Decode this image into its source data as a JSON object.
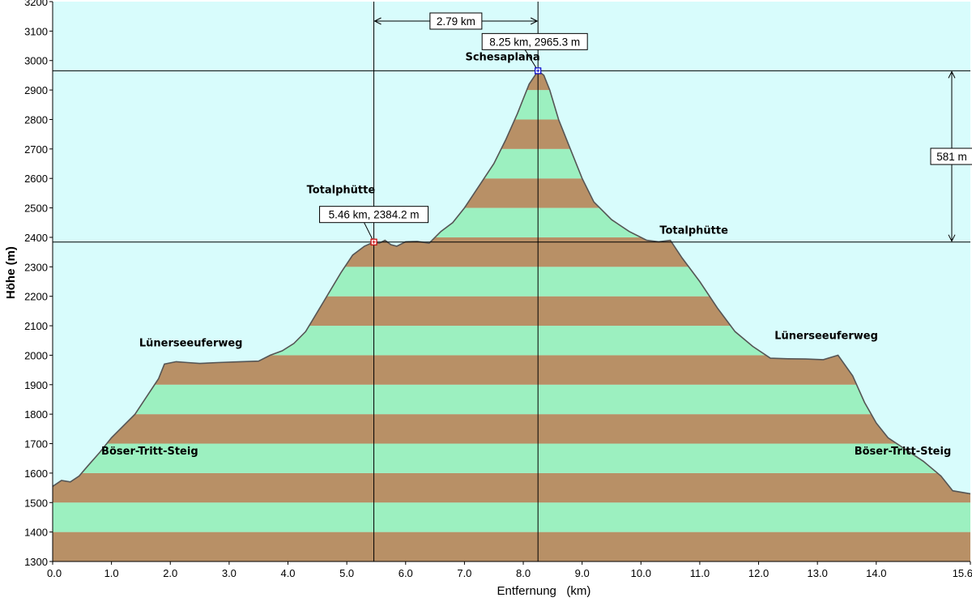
{
  "chart_data": {
    "type": "area",
    "title": "",
    "xlabel": "Entfernung   (km)",
    "ylabel": "Höhe (m)",
    "xlim": [
      0,
      15.6
    ],
    "ylim": [
      1300,
      3200
    ],
    "x_ticks": [
      "0.0",
      "1.0",
      "2.0",
      "3.0",
      "4.0",
      "5.0",
      "6.0",
      "7.0",
      "8.0",
      "9.0",
      "10.0",
      "11.0",
      "12.0",
      "13.0",
      "14.0",
      "15.6"
    ],
    "x_tick_values": [
      0,
      1,
      2,
      3,
      4,
      5,
      6,
      7,
      8,
      9,
      10,
      11,
      12,
      13,
      14,
      15.6
    ],
    "y_ticks": [
      "1300",
      "1400",
      "1500",
      "1600",
      "1700",
      "1800",
      "1900",
      "2000",
      "2100",
      "2200",
      "2300",
      "2400",
      "2500",
      "2600",
      "2700",
      "2800",
      "2900",
      "3000",
      "3100",
      "3200"
    ],
    "y_tick_values": [
      1300,
      1400,
      1500,
      1600,
      1700,
      1800,
      1900,
      2000,
      2100,
      2200,
      2300,
      2400,
      2500,
      2600,
      2700,
      2800,
      2900,
      3000,
      3100,
      3200
    ],
    "colors": {
      "sky": "#d8fcfc",
      "band_green": "#9cf0c0",
      "band_brown": "#b89066",
      "outline": "#555555"
    },
    "series": [
      {
        "x": [
          0,
          0.15,
          0.3,
          0.45,
          0.6,
          0.8,
          1.0,
          1.2,
          1.4,
          1.6,
          1.8,
          1.9,
          2.1,
          2.3,
          2.5,
          2.8,
          3.2,
          3.5,
          3.7,
          3.9,
          4.1,
          4.3,
          4.6,
          4.9,
          5.1,
          5.3,
          5.46,
          5.55,
          5.65,
          5.75,
          5.85,
          6.0,
          6.2,
          6.4,
          6.6,
          6.8,
          7.0,
          7.2,
          7.5,
          7.7,
          7.9,
          8.0,
          8.1,
          8.2,
          8.25,
          8.35,
          8.45,
          8.6,
          8.8,
          9.0,
          9.2,
          9.5,
          9.8,
          10.1,
          10.3,
          10.5,
          10.7,
          11.0,
          11.3,
          11.6,
          11.9,
          12.2,
          12.5,
          12.8,
          13.1,
          13.35,
          13.6,
          13.8,
          14.0,
          14.2,
          14.5,
          14.8,
          15.1,
          15.3,
          15.6
        ],
        "values": [
          1555,
          1575,
          1570,
          1590,
          1625,
          1670,
          1720,
          1760,
          1800,
          1860,
          1920,
          1970,
          1978,
          1975,
          1972,
          1975,
          1978,
          1980,
          2000,
          2015,
          2040,
          2080,
          2180,
          2280,
          2340,
          2370,
          2384.2,
          2380,
          2390,
          2375,
          2370,
          2385,
          2386,
          2380,
          2420,
          2450,
          2500,
          2560,
          2650,
          2730,
          2820,
          2870,
          2920,
          2950,
          2965.3,
          2950,
          2900,
          2800,
          2700,
          2600,
          2520,
          2460,
          2420,
          2390,
          2385,
          2390,
          2330,
          2250,
          2160,
          2080,
          2030,
          1990,
          1988,
          1987,
          1985,
          2000,
          1930,
          1840,
          1770,
          1720,
          1680,
          1640,
          1590,
          1540,
          1530
        ]
      }
    ],
    "markers": [
      {
        "x": 5.46,
        "y": 2384.2,
        "label": "5.46 km, 2384.2 m",
        "color": "#cc0000"
      },
      {
        "x": 8.25,
        "y": 2965.3,
        "label": "8.25 km, 2965.3 m",
        "color": "#0000cc"
      }
    ],
    "distance_label": "2.79 km",
    "height_label": "581 m",
    "annotations": [
      {
        "text": "Schesaplana",
        "x": 7.65,
        "y": 3000
      },
      {
        "text": "Totalphütte",
        "x": 4.9,
        "y": 2550
      },
      {
        "text": "Totalphütte",
        "x": 10.9,
        "y": 2412
      },
      {
        "text": "Lünerseeuferweg",
        "x": 2.35,
        "y": 2030
      },
      {
        "text": "Lünerseeuferweg",
        "x": 13.15,
        "y": 2055
      },
      {
        "text": "Böser-Tritt-Steig",
        "x": 1.65,
        "y": 1663
      },
      {
        "text": "Böser-Tritt-Steig",
        "x": 14.45,
        "y": 1663
      }
    ]
  }
}
